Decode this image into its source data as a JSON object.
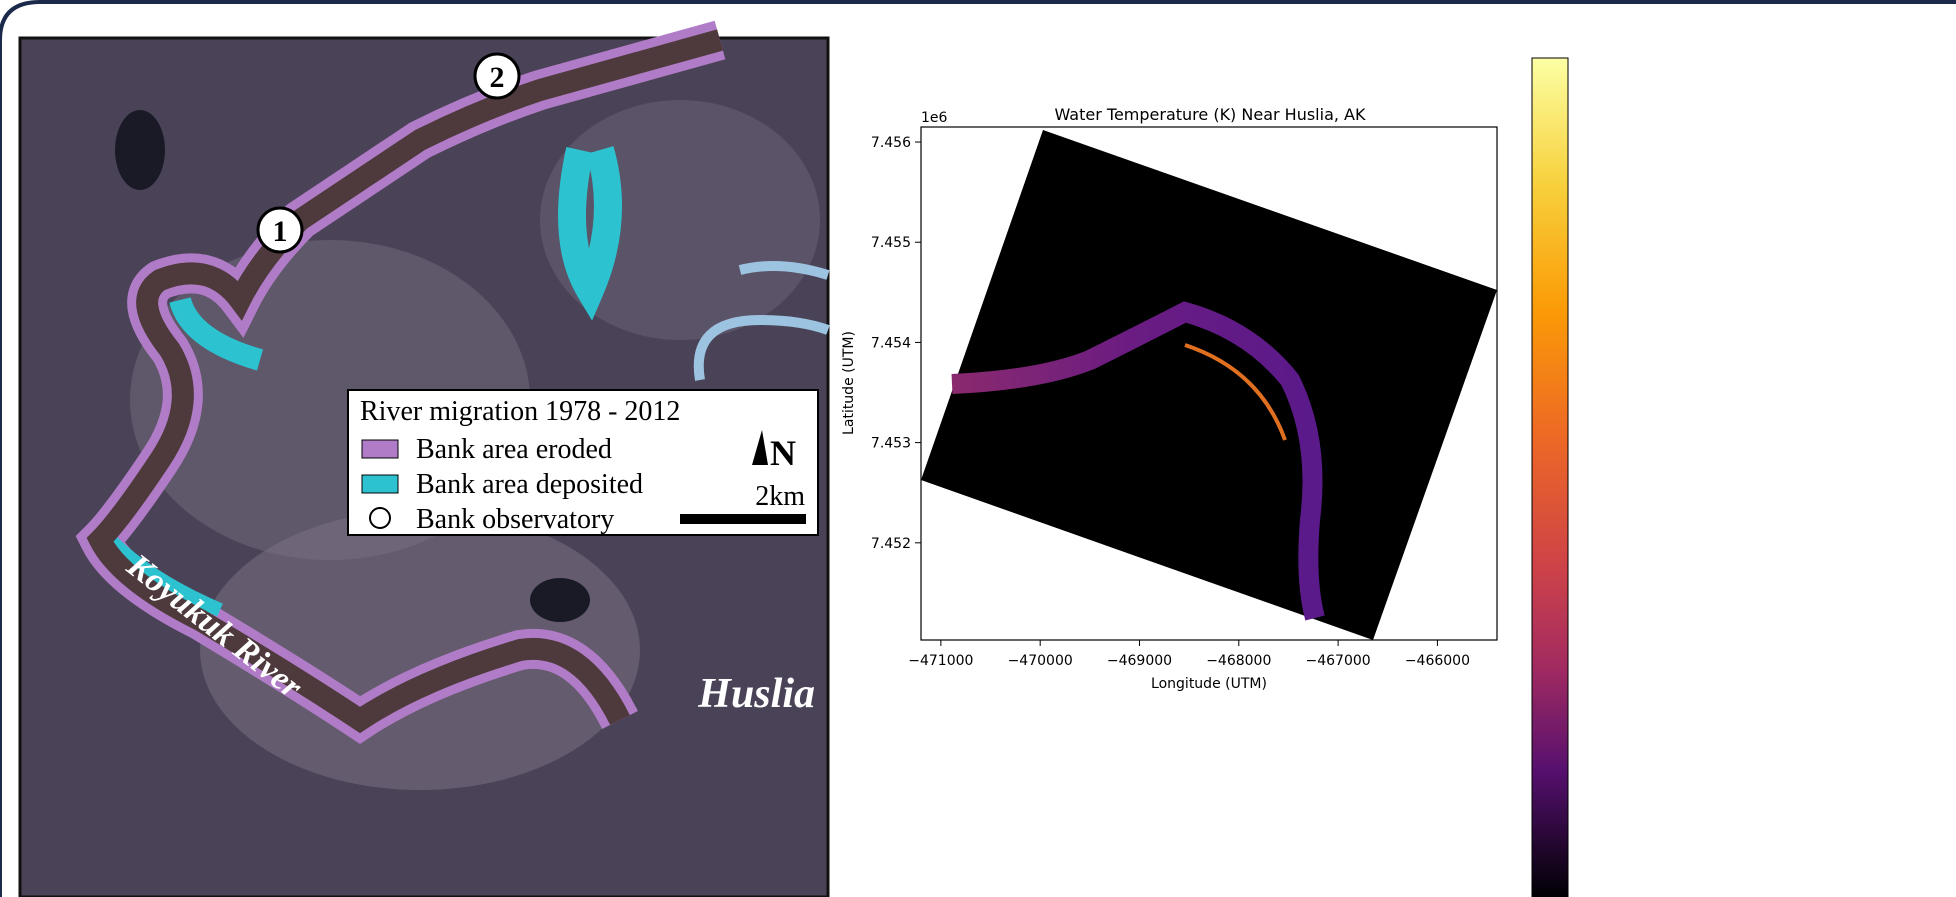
{
  "map": {
    "legend_title": "River migration 1978 - 2012",
    "legend_items": [
      "Bank area eroded",
      "Bank area deposited",
      "Bank observatory"
    ],
    "north": "N",
    "scale": "2km",
    "river": "Koyukuk River",
    "town": "Huslia",
    "markers": [
      "1",
      "2"
    ]
  },
  "chart_data": {
    "type": "heatmap",
    "title": "Water Temperature (K) Near Huslia, AK",
    "x_label": "Longitude (UTM)",
    "y_label": "Latitude (UTM)",
    "y_offset": "1e6",
    "xlim": [
      -471200,
      -465400
    ],
    "ylim": [
      7.45103,
      7.45615
    ],
    "xticks": [
      {
        "value": -471000,
        "label": "−471000"
      },
      {
        "value": -470000,
        "label": "−470000"
      },
      {
        "value": -469000,
        "label": "−469000"
      },
      {
        "value": -468000,
        "label": "−468000"
      },
      {
        "value": -467000,
        "label": "−467000"
      },
      {
        "value": -466000,
        "label": "−466000"
      }
    ],
    "yticks": [
      7.452,
      7.453,
      7.454,
      7.455,
      7.456
    ],
    "colormap": "inferno"
  }
}
